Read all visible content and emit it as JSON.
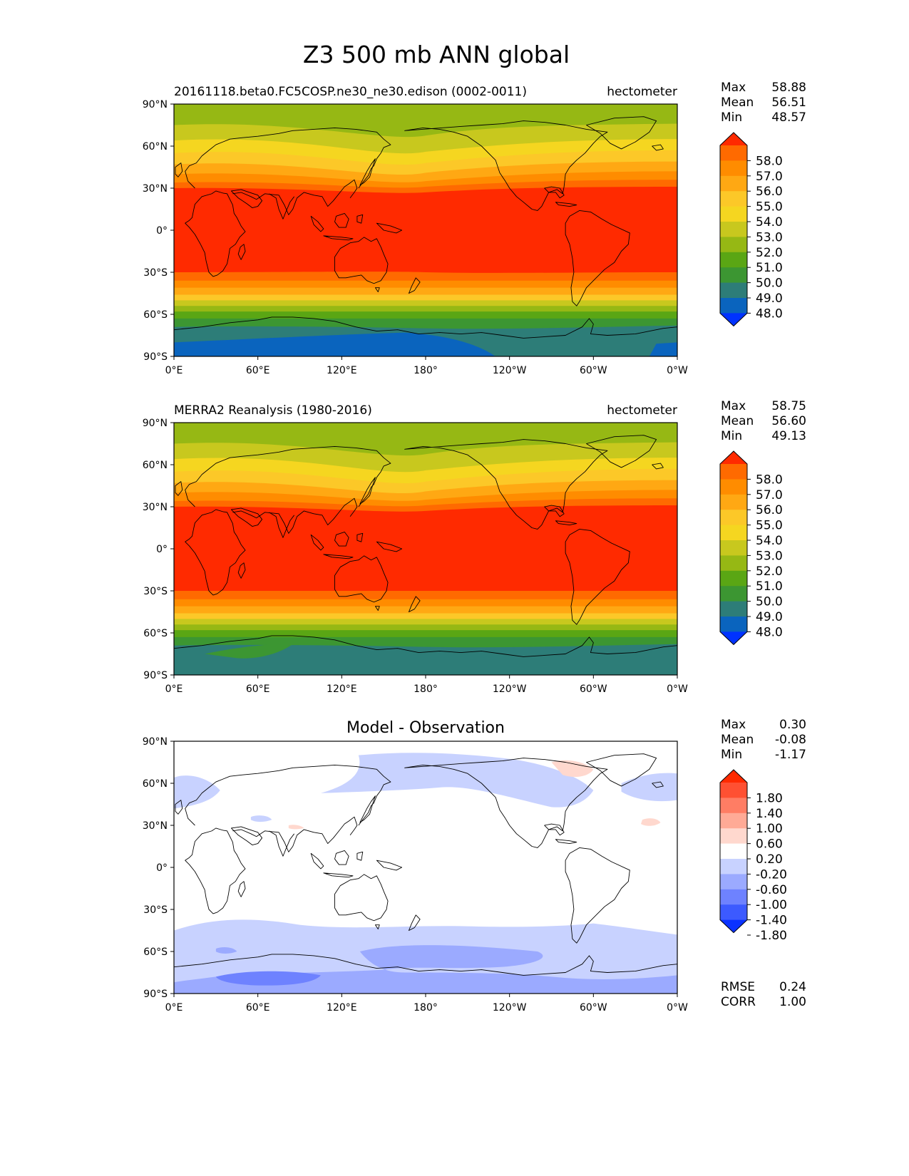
{
  "figure": {
    "title": "Z3 500 mb ANN global"
  },
  "axes": {
    "lat_labels": [
      "90°N",
      "60°N",
      "30°N",
      "0°",
      "30°S",
      "60°S",
      "90°S"
    ],
    "lon_labels": [
      "0°E",
      "60°E",
      "120°E",
      "180°",
      "120°W",
      "60°W",
      "0°W"
    ]
  },
  "panels": [
    {
      "id": "model",
      "title_left": "20161118.beta0.FC5COSP.ne30_ne30.edison (0002-0011)",
      "title_center": "",
      "title_right": "hectometer",
      "stats": [
        {
          "label": "Max",
          "value": "58.88"
        },
        {
          "label": "Mean",
          "value": "56.51"
        },
        {
          "label": "Min",
          "value": "48.57"
        }
      ],
      "colorbar": {
        "ticks": [
          "58.0",
          "57.0",
          "56.0",
          "55.0",
          "54.0",
          "53.0",
          "52.0",
          "51.0",
          "50.0",
          "49.0",
          "48.0"
        ],
        "colors": [
          "#ff2a00",
          "#ff6a00",
          "#ff8c00",
          "#ffa813",
          "#fcc828",
          "#f5d620",
          "#c8c81e",
          "#96b814",
          "#5aa614",
          "#3c9632",
          "#2d7d78",
          "#0a64be",
          "#0032ff"
        ]
      },
      "footer_stats": []
    },
    {
      "id": "obs",
      "title_left": "MERRA2 Reanalysis (1980-2016)",
      "title_center": "",
      "title_right": "hectometer",
      "stats": [
        {
          "label": "Max",
          "value": "58.75"
        },
        {
          "label": "Mean",
          "value": "56.60"
        },
        {
          "label": "Min",
          "value": "49.13"
        }
      ],
      "colorbar": {
        "ticks": [
          "58.0",
          "57.0",
          "56.0",
          "55.0",
          "54.0",
          "53.0",
          "52.0",
          "51.0",
          "50.0",
          "49.0",
          "48.0"
        ],
        "colors": [
          "#ff2a00",
          "#ff6a00",
          "#ff8c00",
          "#ffa813",
          "#fcc828",
          "#f5d620",
          "#c8c81e",
          "#96b814",
          "#5aa614",
          "#3c9632",
          "#2d7d78",
          "#0a64be",
          "#0032ff"
        ]
      },
      "footer_stats": []
    },
    {
      "id": "diff",
      "title_left": "",
      "title_center": "Model - Observation",
      "title_right": "",
      "stats": [
        {
          "label": "Max",
          "value": "0.30"
        },
        {
          "label": "Mean",
          "value": "-0.08"
        },
        {
          "label": "Min",
          "value": "-1.17"
        }
      ],
      "colorbar": {
        "ticks": [
          "1.80",
          "1.40",
          "1.00",
          "0.60",
          "0.20",
          "-0.20",
          "-0.60",
          "-1.00",
          "-1.40",
          "-1.80"
        ],
        "colors": [
          "#ff2a00",
          "#ff5032",
          "#ff7d64",
          "#ffaa96",
          "#ffd8ce",
          "#ffffff",
          "#c8d2ff",
          "#9baaff",
          "#6e82ff",
          "#3c5aff",
          "#0a32ff"
        ]
      },
      "footer_stats": [
        {
          "label": "RMSE",
          "value": "0.24"
        },
        {
          "label": "CORR",
          "value": "1.00"
        }
      ]
    }
  ]
}
